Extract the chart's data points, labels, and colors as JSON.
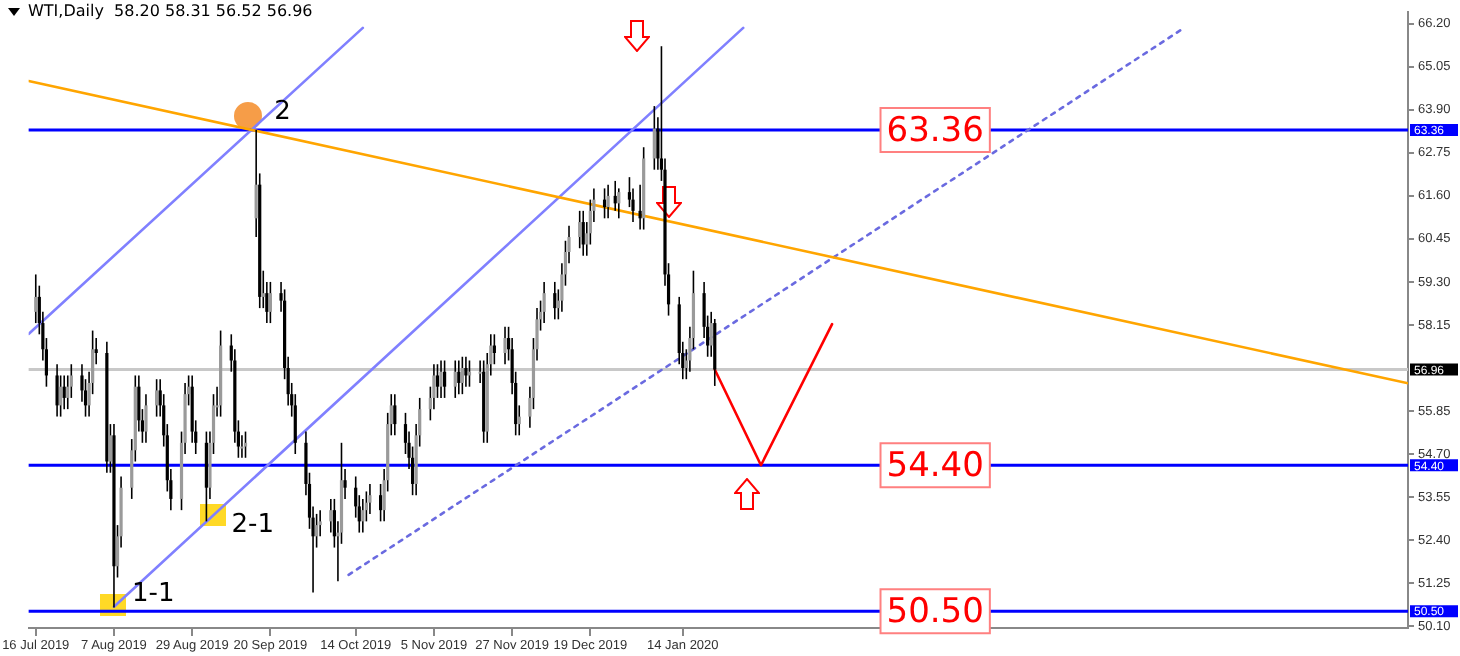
{
  "chart_data": {
    "type": "candlestick",
    "title": "WTI,Daily  58.20 58.31 56.52 56.96",
    "x": [
      "2019-07-16",
      "2019-07-17",
      "2019-07-18",
      "2019-07-19",
      "2019-07-22",
      "2019-07-23",
      "2019-07-24",
      "2019-07-25",
      "2019-07-26",
      "2019-07-29",
      "2019-07-30",
      "2019-07-31",
      "2019-08-01",
      "2019-08-02",
      "2019-08-05",
      "2019-08-06",
      "2019-08-07",
      "2019-08-08",
      "2019-08-09",
      "2019-08-12",
      "2019-08-13",
      "2019-08-14",
      "2019-08-15",
      "2019-08-16",
      "2019-08-19",
      "2019-08-20",
      "2019-08-21",
      "2019-08-22",
      "2019-08-23",
      "2019-08-26",
      "2019-08-27",
      "2019-08-28",
      "2019-08-29",
      "2019-08-30",
      "2019-09-02",
      "2019-09-03",
      "2019-09-04",
      "2019-09-05",
      "2019-09-06",
      "2019-09-09",
      "2019-09-10",
      "2019-09-11",
      "2019-09-12",
      "2019-09-13",
      "2019-09-16",
      "2019-09-17",
      "2019-09-18",
      "2019-09-19",
      "2019-09-20",
      "2019-09-23",
      "2019-09-24",
      "2019-09-25",
      "2019-09-26",
      "2019-09-27",
      "2019-09-30",
      "2019-10-01",
      "2019-10-02",
      "2019-10-03",
      "2019-10-04",
      "2019-10-07",
      "2019-10-08",
      "2019-10-09",
      "2019-10-10",
      "2019-10-11",
      "2019-10-14",
      "2019-10-15",
      "2019-10-16",
      "2019-10-17",
      "2019-10-18",
      "2019-10-21",
      "2019-10-22",
      "2019-10-23",
      "2019-10-24",
      "2019-10-25",
      "2019-10-28",
      "2019-10-29",
      "2019-10-30",
      "2019-10-31",
      "2019-11-01",
      "2019-11-04",
      "2019-11-05",
      "2019-11-06",
      "2019-11-07",
      "2019-11-08",
      "2019-11-11",
      "2019-11-12",
      "2019-11-13",
      "2019-11-14",
      "2019-11-15",
      "2019-11-18",
      "2019-11-19",
      "2019-11-20",
      "2019-11-21",
      "2019-11-22",
      "2019-11-25",
      "2019-11-26",
      "2019-11-27",
      "2019-11-28",
      "2019-11-29",
      "2019-12-02",
      "2019-12-03",
      "2019-12-04",
      "2019-12-05",
      "2019-12-06",
      "2019-12-09",
      "2019-12-10",
      "2019-12-11",
      "2019-12-12",
      "2019-12-13",
      "2019-12-16",
      "2019-12-17",
      "2019-12-18",
      "2019-12-19",
      "2019-12-20",
      "2019-12-23",
      "2019-12-24",
      "2019-12-26",
      "2019-12-27",
      "2019-12-30",
      "2019-12-31",
      "2020-01-02",
      "2020-01-03",
      "2020-01-06",
      "2020-01-07",
      "2020-01-08",
      "2020-01-09",
      "2020-01-10",
      "2020-01-13",
      "2020-01-14",
      "2020-01-15",
      "2020-01-16",
      "2020-01-17",
      "2020-01-20",
      "2020-01-21",
      "2020-01-22",
      "2020-01-23"
    ],
    "ohlc": [
      [
        58.5,
        59.5,
        58.2,
        58.9
      ],
      [
        58.9,
        59.2,
        57.9,
        58.2
      ],
      [
        58.2,
        58.5,
        57.2,
        57.5
      ],
      [
        57.5,
        57.8,
        56.5,
        56.8
      ],
      [
        56.8,
        57.1,
        55.7,
        56.0
      ],
      [
        56.0,
        56.8,
        55.7,
        56.5
      ],
      [
        56.5,
        56.8,
        55.9,
        56.2
      ],
      [
        56.2,
        56.8,
        55.9,
        56.5
      ],
      [
        56.5,
        57.1,
        56.2,
        56.8
      ],
      [
        56.8,
        57.1,
        56.1,
        56.4
      ],
      [
        56.4,
        56.7,
        55.7,
        56.0
      ],
      [
        56.0,
        56.9,
        55.7,
        56.6
      ],
      [
        56.6,
        58.0,
        56.3,
        57.5
      ],
      [
        57.5,
        57.8,
        57.1,
        57.4
      ],
      [
        57.4,
        57.7,
        54.2,
        54.5
      ],
      [
        54.5,
        55.5,
        54.2,
        55.2
      ],
      [
        55.2,
        55.5,
        50.6,
        51.7
      ],
      [
        51.7,
        52.8,
        51.4,
        52.5
      ],
      [
        52.5,
        54.1,
        52.2,
        53.8
      ],
      [
        53.8,
        55.1,
        53.5,
        54.8
      ],
      [
        54.8,
        56.8,
        54.5,
        56.5
      ],
      [
        56.5,
        56.8,
        55.3,
        55.6
      ],
      [
        55.6,
        55.9,
        55.0,
        55.3
      ],
      [
        55.3,
        56.3,
        55.0,
        56.0
      ],
      [
        56.0,
        56.7,
        55.7,
        56.4
      ],
      [
        56.4,
        56.7,
        55.7,
        56.0
      ],
      [
        56.0,
        56.3,
        54.9,
        55.2
      ],
      [
        55.2,
        55.5,
        53.7,
        54.0
      ],
      [
        54.0,
        54.3,
        53.2,
        53.5
      ],
      [
        53.5,
        55.3,
        53.2,
        55.0
      ],
      [
        55.0,
        56.6,
        54.7,
        56.3
      ],
      [
        56.3,
        56.8,
        56.0,
        56.5
      ],
      [
        56.5,
        56.8,
        55.0,
        55.3
      ],
      [
        55.3,
        55.6,
        54.7,
        55.0
      ],
      [
        55.0,
        55.3,
        52.9,
        53.8
      ],
      [
        53.8,
        55.3,
        53.5,
        55.0
      ],
      [
        55.0,
        56.3,
        54.7,
        56.0
      ],
      [
        56.0,
        56.5,
        55.7,
        56.0
      ],
      [
        56.0,
        58.0,
        55.7,
        57.6
      ],
      [
        57.6,
        57.9,
        56.9,
        57.2
      ],
      [
        57.2,
        57.5,
        55.0,
        55.3
      ],
      [
        55.3,
        55.6,
        54.6,
        54.9
      ],
      [
        54.9,
        55.2,
        54.6,
        54.9
      ],
      [
        54.9,
        55.3,
        54.6,
        55.0
      ],
      [
        61.0,
        63.36,
        60.5,
        61.9
      ],
      [
        61.9,
        62.2,
        58.6,
        58.9
      ],
      [
        58.9,
        59.6,
        58.6,
        59.0
      ],
      [
        59.0,
        59.3,
        58.2,
        58.5
      ],
      [
        58.5,
        59.3,
        58.2,
        59.0
      ],
      [
        59.0,
        59.3,
        58.5,
        58.8
      ],
      [
        58.8,
        59.1,
        56.7,
        57.0
      ],
      [
        57.0,
        57.3,
        56.0,
        56.3
      ],
      [
        56.3,
        56.6,
        55.7,
        56.0
      ],
      [
        56.0,
        56.3,
        54.7,
        55.0
      ],
      [
        55.0,
        55.3,
        53.6,
        53.9
      ],
      [
        53.9,
        54.2,
        52.7,
        53.0
      ],
      [
        53.0,
        53.3,
        51.0,
        52.5
      ],
      [
        52.5,
        53.1,
        52.2,
        52.8
      ],
      [
        52.8,
        53.2,
        52.5,
        52.9
      ],
      [
        52.9,
        53.5,
        52.6,
        53.2
      ],
      [
        53.2,
        53.5,
        52.2,
        52.5
      ],
      [
        52.5,
        52.9,
        51.3,
        52.6
      ],
      [
        52.6,
        55.0,
        52.3,
        54.0
      ],
      [
        54.0,
        54.3,
        53.5,
        53.8
      ],
      [
        53.8,
        54.1,
        53.0,
        53.3
      ],
      [
        53.3,
        53.6,
        52.6,
        52.9
      ],
      [
        52.9,
        53.5,
        52.6,
        53.2
      ],
      [
        53.2,
        53.7,
        52.9,
        53.4
      ],
      [
        53.4,
        53.9,
        53.1,
        53.6
      ],
      [
        53.6,
        53.9,
        52.9,
        53.2
      ],
      [
        53.2,
        54.3,
        52.9,
        54.0
      ],
      [
        54.0,
        55.8,
        53.7,
        55.5
      ],
      [
        55.5,
        56.3,
        55.2,
        56.0
      ],
      [
        56.0,
        56.3,
        55.2,
        55.5
      ],
      [
        55.5,
        55.8,
        54.7,
        55.0
      ],
      [
        55.0,
        55.3,
        54.3,
        54.6
      ],
      [
        54.6,
        54.9,
        53.6,
        53.9
      ],
      [
        53.9,
        55.5,
        53.6,
        55.2
      ],
      [
        55.2,
        56.2,
        54.9,
        55.9
      ],
      [
        55.9,
        56.5,
        55.6,
        56.2
      ],
      [
        56.2,
        57.1,
        55.9,
        56.8
      ],
      [
        56.8,
        57.1,
        56.2,
        56.5
      ],
      [
        56.5,
        57.2,
        56.2,
        56.9
      ],
      [
        56.9,
        57.2,
        56.2,
        56.5
      ],
      [
        56.5,
        57.2,
        56.2,
        56.9
      ],
      [
        56.9,
        57.2,
        56.3,
        56.6
      ],
      [
        56.6,
        57.3,
        56.3,
        57.0
      ],
      [
        57.0,
        57.3,
        56.5,
        56.8
      ],
      [
        56.8,
        57.2,
        56.5,
        56.9
      ],
      [
        56.9,
        57.2,
        56.6,
        56.9
      ],
      [
        56.9,
        57.2,
        55.0,
        55.3
      ],
      [
        55.3,
        57.4,
        55.0,
        57.1
      ],
      [
        57.1,
        57.9,
        56.8,
        57.6
      ],
      [
        57.6,
        57.9,
        57.1,
        57.4
      ],
      [
        57.4,
        58.1,
        57.1,
        57.8
      ],
      [
        57.8,
        58.1,
        57.2,
        57.5
      ],
      [
        57.5,
        57.8,
        56.3,
        56.6
      ],
      [
        56.6,
        56.9,
        55.2,
        55.5
      ],
      [
        55.5,
        56.0,
        55.2,
        55.7
      ],
      [
        55.7,
        56.5,
        55.4,
        56.2
      ],
      [
        56.2,
        57.8,
        55.9,
        57.5
      ],
      [
        57.5,
        58.6,
        57.2,
        58.3
      ],
      [
        58.3,
        58.8,
        58.0,
        58.5
      ],
      [
        58.5,
        59.3,
        58.2,
        59.0
      ],
      [
        59.0,
        59.3,
        58.3,
        58.6
      ],
      [
        58.6,
        59.1,
        58.3,
        58.8
      ],
      [
        58.8,
        59.8,
        58.5,
        59.5
      ],
      [
        59.5,
        60.4,
        59.2,
        60.1
      ],
      [
        60.1,
        60.8,
        59.8,
        60.5
      ],
      [
        60.5,
        61.2,
        60.2,
        60.9
      ],
      [
        60.9,
        61.2,
        60.0,
        60.3
      ],
      [
        60.3,
        60.9,
        60.0,
        60.6
      ],
      [
        60.6,
        61.5,
        60.3,
        61.2
      ],
      [
        61.2,
        61.8,
        60.9,
        61.5
      ],
      [
        61.5,
        61.8,
        61.0,
        61.3
      ],
      [
        61.3,
        61.9,
        61.0,
        61.6
      ],
      [
        61.6,
        62.0,
        61.2,
        61.4
      ],
      [
        61.4,
        61.8,
        61.0,
        61.7
      ],
      [
        61.7,
        62.1,
        61.3,
        61.5
      ],
      [
        61.5,
        61.8,
        60.9,
        61.2
      ],
      [
        61.2,
        61.9,
        60.7,
        61.0
      ],
      [
        61.0,
        62.9,
        60.7,
        62.6
      ],
      [
        62.6,
        64.0,
        62.3,
        63.4
      ],
      [
        63.4,
        63.7,
        62.3,
        62.6
      ],
      [
        62.6,
        65.6,
        62.0,
        62.3
      ],
      [
        62.3,
        62.6,
        59.2,
        59.5
      ],
      [
        59.5,
        59.8,
        58.4,
        58.7
      ],
      [
        58.7,
        58.9,
        57.1,
        57.4
      ],
      [
        57.4,
        57.7,
        56.7,
        57.0
      ],
      [
        57.0,
        57.5,
        56.7,
        57.2
      ],
      [
        57.2,
        58.1,
        56.9,
        57.8
      ],
      [
        57.8,
        59.6,
        57.5,
        59.0
      ],
      [
        59.0,
        59.3,
        57.8,
        58.1
      ],
      [
        58.1,
        58.4,
        57.3,
        57.6
      ],
      [
        57.6,
        58.5,
        57.3,
        58.2
      ],
      [
        58.2,
        58.31,
        56.52,
        56.96
      ]
    ],
    "xlim": [
      "2019-07-14",
      "2020-08-05"
    ],
    "xticks": [
      {
        "value": "2019-07-16",
        "label": "16 Jul 2019"
      },
      {
        "value": "2019-08-07",
        "label": "7 Aug 2019"
      },
      {
        "value": "2019-08-29",
        "label": "29 Aug 2019"
      },
      {
        "value": "2019-09-20",
        "label": "20 Sep 2019"
      },
      {
        "value": "2019-10-14",
        "label": "14 Oct 2019"
      },
      {
        "value": "2019-11-05",
        "label": "5 Nov 2019"
      },
      {
        "value": "2019-11-27",
        "label": "27 Nov 2019"
      },
      {
        "value": "2019-12-19",
        "label": "19 Dec 2019"
      },
      {
        "value": "2020-01-14",
        "label": "14 Jan 2020"
      }
    ],
    "ylim": [
      50.05,
      66.52
    ],
    "yticks": [
      {
        "value": 50.1,
        "label": "50.10"
      },
      {
        "value": 51.25,
        "label": "51.25"
      },
      {
        "value": 52.4,
        "label": "52.40"
      },
      {
        "value": 53.55,
        "label": "53.55"
      },
      {
        "value": 54.7,
        "label": "54.70"
      },
      {
        "value": 55.85,
        "label": "55.85"
      },
      {
        "value": 58.15,
        "label": "58.15"
      },
      {
        "value": 59.3,
        "label": "59.30"
      },
      {
        "value": 60.45,
        "label": "60.45"
      },
      {
        "value": 61.6,
        "label": "61.60"
      },
      {
        "value": 62.75,
        "label": "62.75"
      },
      {
        "value": 63.9,
        "label": "63.90"
      },
      {
        "value": 65.05,
        "label": "65.05"
      },
      {
        "value": 66.2,
        "label": "66.20"
      }
    ],
    "series": [
      {
        "type": "line",
        "color": "#ffa500",
        "x": [
          "2019-07-14",
          "2020-08-05"
        ],
        "values": [
          64.67,
          56.59
        ]
      },
      {
        "type": "line",
        "color": "#8080ff",
        "x": [
          "2019-07-14",
          "2019-10-16"
        ],
        "values": [
          57.91,
          66.09
        ]
      },
      {
        "type": "line",
        "color": "#8080ff",
        "x": [
          "2019-08-07",
          "2020-01-31"
        ],
        "values": [
          50.62,
          66.09
        ]
      },
      {
        "type": "line",
        "color": "#6a6ae0",
        "line_style": "dotted",
        "x": [
          "2019-10-12",
          "2020-06-03"
        ],
        "values": [
          51.47,
          66.09
        ]
      },
      {
        "type": "line",
        "color": "#ff0000",
        "x": [
          "2020-01-23",
          "2020-02-05",
          "2020-02-25"
        ],
        "values": [
          56.96,
          54.4,
          58.17
        ]
      }
    ],
    "ref_lines": [
      {
        "axis": "y",
        "value": 63.36,
        "label": "63.36",
        "color": "#0000ff"
      },
      {
        "axis": "y",
        "value": 54.4,
        "label": "54.40",
        "color": "#0000ff"
      },
      {
        "axis": "y",
        "value": 50.5,
        "label": "50.50",
        "color": "#0000ff"
      },
      {
        "axis": "y",
        "value": 56.96,
        "label": "56.96",
        "color": "#c8c8c8"
      }
    ],
    "annotations": [
      {
        "text": "2",
        "x": "2019-09-16",
        "y": 63.36
      },
      {
        "text": "2-1",
        "x": "2019-09-04",
        "y": 53.07
      },
      {
        "text": "1-1",
        "x": "2019-08-07",
        "y": 50.62
      },
      {
        "text": "63.36",
        "x": "2020-03-25",
        "y": 63.36
      },
      {
        "text": "54.40",
        "x": "2020-03-25",
        "y": 54.4
      },
      {
        "text": "50.50",
        "x": "2020-03-25",
        "y": 50.5
      }
    ]
  }
}
